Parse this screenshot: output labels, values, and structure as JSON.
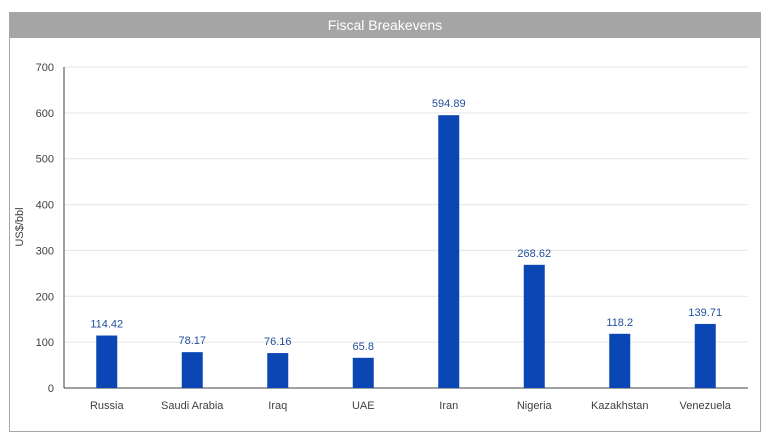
{
  "chart_data": {
    "type": "bar",
    "title": "Fiscal Breakevens",
    "xlabel": "",
    "ylabel": "US$/bbl",
    "ylim": [
      0,
      700
    ],
    "yticks": [
      0,
      100,
      200,
      300,
      400,
      500,
      600,
      700
    ],
    "categories": [
      "Russia",
      "Saudi Arabia",
      "Iraq",
      "UAE",
      "Iran",
      "Nigeria",
      "Kazakhstan",
      "Venezuela"
    ],
    "values": [
      114.42,
      78.17,
      76.16,
      65.8,
      594.89,
      268.62,
      118.2,
      139.71
    ],
    "data_labels": [
      "114.42",
      "78.17",
      "76.16",
      "65.8",
      "594.89",
      "268.62",
      "118.2",
      "139.71"
    ],
    "grid": true,
    "legend": "none",
    "colors": {
      "bar": "#0a47b5",
      "label": "#1f4e9a",
      "title_bar": "#a5a5a5",
      "grid": "#e6e6e6",
      "axis": "#404040"
    }
  }
}
